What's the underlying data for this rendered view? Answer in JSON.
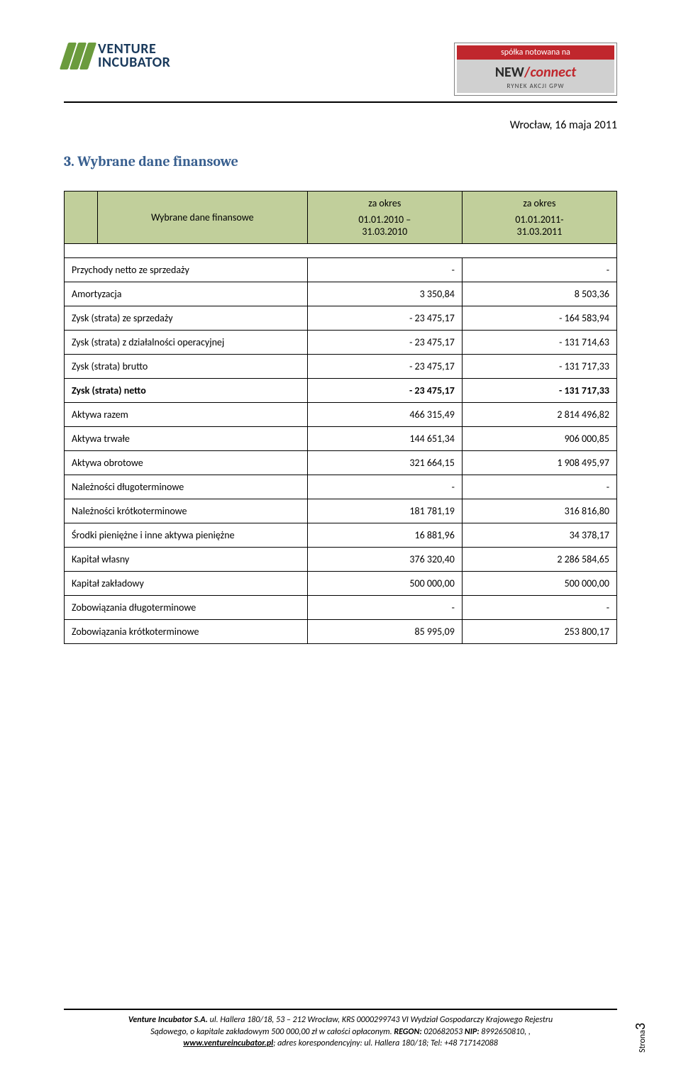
{
  "header": {
    "logo_left_line1": "VENTURE",
    "logo_left_line2": "INCUBATOR",
    "badge_top": "spółka notowana na",
    "badge_mid_left": "NEW",
    "badge_mid_slash": "/",
    "badge_mid_right": "connect",
    "badge_bot": "RYNEK AKCJI GPW"
  },
  "date_line": "Wrocław, 16  maja 2011",
  "section_title": "3. Wybrane dane finansowe",
  "table": {
    "header_label": "Wybrane dane finansowe",
    "header_period_label": "za okres",
    "period1_line1": "01.01.2010 –",
    "period1_line2": "31.03.2010",
    "period2_line1": "01.01.2011-",
    "period2_line2": "31.03.2011",
    "rows": [
      {
        "label": "Przychody netto ze sprzedaży",
        "v1": "-",
        "v2": "-",
        "n1": false,
        "n2": false,
        "bold": false
      },
      {
        "label": "Amortyzacja",
        "v1": "3 350,84",
        "v2": "8 503,36",
        "n1": false,
        "n2": false,
        "bold": false
      },
      {
        "label": "Zysk (strata) ze sprzedaży",
        "v1": "23 475,17",
        "v2": "164 583,94",
        "n1": true,
        "n2": true,
        "bold": false
      },
      {
        "label": "Zysk (strata) z działalności operacyjnej",
        "v1": "23 475,17",
        "v2": "131 714,63",
        "n1": true,
        "n2": true,
        "bold": false
      },
      {
        "label": "Zysk (strata) brutto",
        "v1": "23 475,17",
        "v2": "131 717,33",
        "n1": true,
        "n2": true,
        "bold": false
      },
      {
        "label": "Zysk (strata) netto",
        "v1": "23 475,17",
        "v2": "131 717,33",
        "n1": true,
        "n2": true,
        "bold": true
      },
      {
        "label": "Aktywa razem",
        "v1": "466 315,49",
        "v2": "2 814 496,82",
        "n1": false,
        "n2": false,
        "bold": false
      },
      {
        "label": "Aktywa trwałe",
        "v1": "144 651,34",
        "v2": "906 000,85",
        "n1": false,
        "n2": false,
        "bold": false
      },
      {
        "label": "Aktywa obrotowe",
        "v1": "321 664,15",
        "v2": "1 908 495,97",
        "n1": false,
        "n2": false,
        "bold": false
      },
      {
        "label": "Należności długoterminowe",
        "v1": "-",
        "v2": "-",
        "n1": false,
        "n2": false,
        "bold": false
      },
      {
        "label": "Należności krótkoterminowe",
        "v1": "181 781,19",
        "v2": "316 816,80",
        "n1": false,
        "n2": false,
        "bold": false
      },
      {
        "label": "Środki pieniężne i inne aktywa pieniężne",
        "v1": "16 881,96",
        "v2": "34 378,17",
        "n1": false,
        "n2": false,
        "bold": false
      },
      {
        "label": "Kapitał własny",
        "v1": "376 320,40",
        "v2": "2 286 584,65",
        "n1": false,
        "n2": false,
        "bold": false
      },
      {
        "label": "Kapitał zakładowy",
        "v1": "500 000,00",
        "v2": "500 000,00",
        "n1": false,
        "n2": false,
        "bold": false
      },
      {
        "label": "Zobowiązania długoterminowe",
        "v1": "-",
        "v2": "-",
        "n1": false,
        "n2": false,
        "bold": false
      },
      {
        "label": "Zobowiązania krótkoterminowe",
        "v1": "85 995,09",
        "v2": "253 800,17",
        "n1": false,
        "n2": false,
        "bold": false
      }
    ],
    "colors": {
      "header_bg": "#c1cf9b",
      "border": "#000000"
    }
  },
  "footer": {
    "line1_strong": "Venture Incubator S.A.",
    "line1_rest": " ul. Hallera 180/18, 53 – 212 Wrocław, KRS 0000299743 VI Wydział Gospodarczy Krajowego Rejestru",
    "line2": "Sądowego, o kapitale zakładowym 500 000,00 zł w całości opłaconym. ",
    "line2_strong": "REGON:",
    "line2_r": " 020682053 ",
    "line2_strong2": "NIP:",
    "line2_r2": " 8992650810, ,",
    "line3_link": "www.ventureincubator.pl",
    "line3_rest": "; adres korespondencyjny: ul. Hallera 180/18; Tel: +48 717142088"
  },
  "page_label": "Strona",
  "page_number": "3"
}
